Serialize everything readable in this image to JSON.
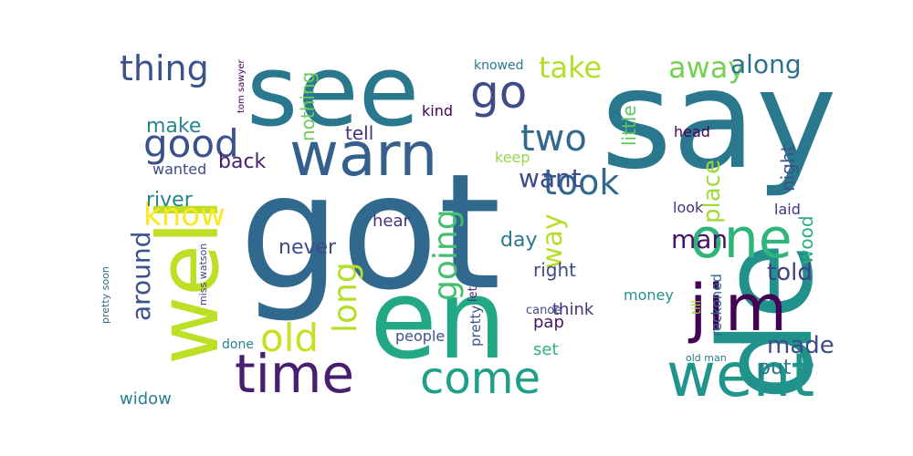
{
  "words": [
    {
      "text": "say",
      "c": "#2a788e"
    },
    {
      "text": "got",
      "c": "#31688e"
    },
    {
      "text": "see",
      "c": "#2a788e"
    },
    {
      "text": "de",
      "c": "#21918c"
    },
    {
      "text": "en",
      "c": "#22a884"
    },
    {
      "text": "well",
      "c": "#bddf26"
    },
    {
      "text": "warn",
      "c": "#35608d"
    },
    {
      "text": "jim",
      "c": "#440154"
    },
    {
      "text": "one",
      "c": "#2fb47c"
    },
    {
      "text": "come",
      "c": "#1f9e89"
    },
    {
      "text": "went",
      "c": "#1f958b"
    },
    {
      "text": "time",
      "c": "#481f70"
    },
    {
      "text": "good",
      "c": "#3b528b"
    },
    {
      "text": "go",
      "c": "#3e4a89"
    },
    {
      "text": "thing",
      "c": "#3b528b"
    },
    {
      "text": "old",
      "c": "#c8e020"
    },
    {
      "text": "two",
      "c": "#31688e"
    },
    {
      "text": "took",
      "c": "#31688e"
    },
    {
      "text": "know",
      "c": "#fde725"
    },
    {
      "text": "take",
      "c": "#b5de2b"
    },
    {
      "text": "away",
      "c": "#75d054"
    },
    {
      "text": "along",
      "c": "#2c728e"
    },
    {
      "text": "long",
      "c": "#b5de2b"
    },
    {
      "text": "going",
      "c": "#44bf70"
    },
    {
      "text": "want",
      "c": "#3e4a89"
    },
    {
      "text": "man",
      "c": "#471365"
    },
    {
      "text": "told",
      "c": "#433e85"
    },
    {
      "text": "around",
      "c": "#3b528b"
    },
    {
      "text": "place",
      "c": "#a0da39"
    },
    {
      "text": "way",
      "c": "#b5de2b"
    },
    {
      "text": "made",
      "c": "#3e4a89"
    },
    {
      "text": "make",
      "c": "#25858e"
    },
    {
      "text": "back",
      "c": "#481f70"
    },
    {
      "text": "river",
      "c": "#25858e"
    },
    {
      "text": "day",
      "c": "#2a788e"
    },
    {
      "text": "night",
      "c": "#3b528b"
    },
    {
      "text": "never",
      "c": "#3e4a89"
    },
    {
      "text": "wood",
      "c": "#29af7f"
    },
    {
      "text": "little",
      "c": "#5ec962"
    },
    {
      "text": "right",
      "c": "#3e4a89"
    },
    {
      "text": "nothing",
      "c": "#6ccd5a"
    },
    {
      "text": "tell",
      "c": "#46327e"
    },
    {
      "text": "put",
      "c": "#2a788e"
    },
    {
      "text": "widow",
      "c": "#26828e"
    },
    {
      "text": "wanted",
      "c": "#3e4a89"
    },
    {
      "text": "pap",
      "c": "#471365"
    },
    {
      "text": "head",
      "c": "#440154"
    },
    {
      "text": "kind",
      "c": "#440154"
    },
    {
      "text": "hear",
      "c": "#46327e"
    },
    {
      "text": "look",
      "c": "#46327e"
    },
    {
      "text": "laid",
      "c": "#46327e"
    },
    {
      "text": "keep",
      "c": "#90d743"
    },
    {
      "text": "people",
      "c": "#3b528b"
    },
    {
      "text": "reckoned",
      "c": "#31688e"
    },
    {
      "text": "money",
      "c": "#21918c"
    },
    {
      "text": "think",
      "c": "#46327e"
    },
    {
      "text": "set",
      "c": "#2fb47c"
    },
    {
      "text": "pretty",
      "c": "#3b528b"
    },
    {
      "text": "done",
      "c": "#26828e"
    },
    {
      "text": "knowed",
      "c": "#2a788e"
    },
    {
      "text": "let",
      "c": "#482878"
    },
    {
      "text": "canoe",
      "c": "#3e4a89"
    },
    {
      "text": "till",
      "c": "#a0da39"
    },
    {
      "text": "old man",
      "c": "#2a788e"
    },
    {
      "text": "tom sawyer",
      "c": "#440154"
    },
    {
      "text": "miss watson",
      "c": "#414487"
    },
    {
      "text": "pretty soon",
      "c": "#31688e"
    }
  ]
}
